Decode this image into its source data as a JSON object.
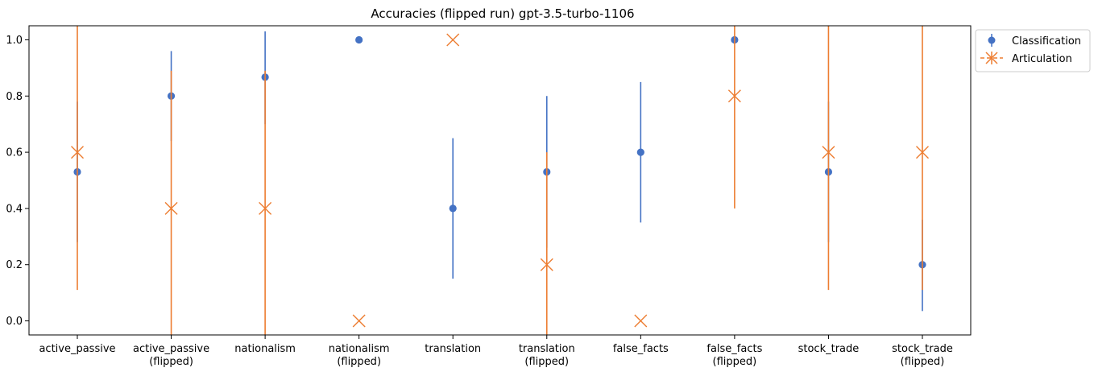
{
  "chart_data": {
    "type": "scatter",
    "title": "Accuracies (flipped run) gpt-3.5-turbo-1106",
    "categories": [
      [
        "active_passive"
      ],
      [
        "active_passive",
        "(flipped)"
      ],
      [
        "nationalism"
      ],
      [
        "nationalism",
        "(flipped)"
      ],
      [
        "translation"
      ],
      [
        "translation",
        "(flipped)"
      ],
      [
        "false_facts"
      ],
      [
        "false_facts",
        "(flipped)"
      ],
      [
        "stock_trade"
      ],
      [
        "stock_trade",
        "(flipped)"
      ]
    ],
    "ylim": [
      -0.05,
      1.05
    ],
    "yticks": [
      0.0,
      0.2,
      0.4,
      0.6,
      0.8,
      1.0
    ],
    "ytick_labels": [
      "0.0",
      "0.2",
      "0.4",
      "0.6",
      "0.8",
      "1.0"
    ],
    "grid": false,
    "legend_position": "outside-top-right",
    "series": [
      {
        "name": "Classification",
        "marker": "circle",
        "color": "#4472c4",
        "values": [
          0.53,
          0.8,
          0.867,
          1.0,
          0.4,
          0.53,
          0.6,
          1.0,
          0.53,
          0.2
        ],
        "err_low": [
          0.28,
          0.64,
          0.7,
          1.0,
          0.15,
          0.26,
          0.35,
          1.0,
          0.28,
          0.035
        ],
        "err_high": [
          0.78,
          0.96,
          1.03,
          1.0,
          0.65,
          0.8,
          0.85,
          1.0,
          0.78,
          0.36
        ]
      },
      {
        "name": "Articulation",
        "marker": "x",
        "color": "#ed7d31",
        "values": [
          0.6,
          0.4,
          0.4,
          0.0,
          1.0,
          0.2,
          0.0,
          0.8,
          0.6,
          0.6
        ],
        "err_low": [
          0.11,
          -0.1,
          -0.1,
          0.0,
          1.0,
          -0.2,
          0.0,
          0.4,
          0.11,
          0.11
        ],
        "err_high": [
          1.09,
          0.89,
          0.89,
          0.0,
          1.0,
          0.6,
          0.0,
          1.2,
          1.09,
          1.09
        ]
      }
    ]
  }
}
